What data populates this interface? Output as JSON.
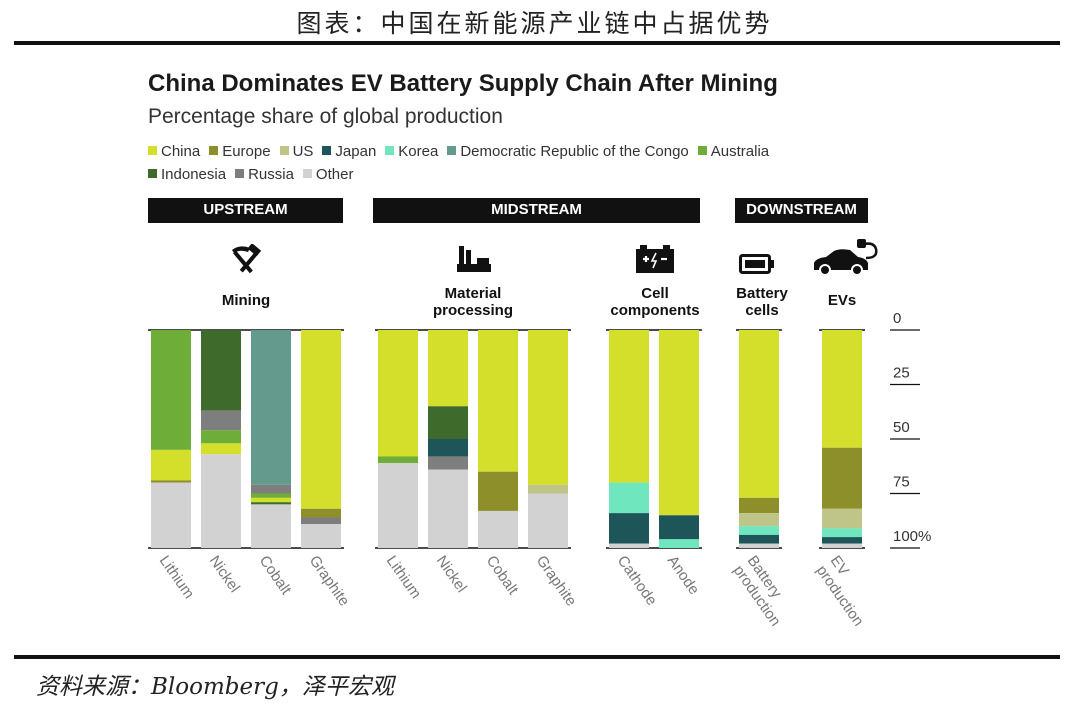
{
  "report_title": "图表：中国在新能源产业链中占据优势",
  "source": "资料来源：Bloomberg，泽平宏观",
  "colors": {
    "China": "#d4df2c",
    "Europe": "#8d8f2a",
    "US": "#bfc488",
    "Japan": "#1d5558",
    "Korea": "#6fe6be",
    "Democratic Republic of the Congo": "#649a8d",
    "Australia": "#6eae38",
    "Indonesia": "#3e6a2b",
    "Russia": "#7e7e7e",
    "Other": "#d2d2d2"
  },
  "chart_data": {
    "type": "bar",
    "stacked": true,
    "orientation": "vertical",
    "title": "China Dominates EV Battery Supply Chain After Mining",
    "subtitle": "Percentage share of global production",
    "ylim": [
      0,
      100
    ],
    "y_inverted": true,
    "y_ticks": [
      "0",
      "25",
      "50",
      "75",
      "100%"
    ],
    "legend": [
      "China",
      "Europe",
      "US",
      "Japan",
      "Korea",
      "Democratic Republic of the Congo",
      "Australia",
      "Indonesia",
      "Russia",
      "Other"
    ],
    "legend_position": "top",
    "stages": [
      {
        "label": "UPSTREAM",
        "groups": [
          {
            "label": "Mining",
            "icon": "pickaxe-hammer-icon",
            "bars": [
              {
                "category": "Lithium",
                "segments": [
                  [
                    "Australia",
                    55
                  ],
                  [
                    "China",
                    14
                  ],
                  [
                    "Europe",
                    1
                  ],
                  [
                    "Other",
                    30
                  ]
                ]
              },
              {
                "category": "Nickel",
                "segments": [
                  [
                    "Indonesia",
                    37
                  ],
                  [
                    "Russia",
                    9
                  ],
                  [
                    "Australia",
                    6
                  ],
                  [
                    "China",
                    5
                  ],
                  [
                    "Other",
                    43
                  ]
                ]
              },
              {
                "category": "Cobalt",
                "segments": [
                  [
                    "Democratic Republic of the Congo",
                    71
                  ],
                  [
                    "Russia",
                    4
                  ],
                  [
                    "Australia",
                    2
                  ],
                  [
                    "China",
                    2
                  ],
                  [
                    "Indonesia",
                    1
                  ],
                  [
                    "Other",
                    20
                  ]
                ]
              },
              {
                "category": "Graphite",
                "segments": [
                  [
                    "China",
                    82
                  ],
                  [
                    "Europe",
                    4
                  ],
                  [
                    "Russia",
                    3
                  ],
                  [
                    "Other",
                    11
                  ]
                ]
              }
            ]
          }
        ]
      },
      {
        "label": "MIDSTREAM",
        "groups": [
          {
            "label": "Material processing",
            "icon": "factory-icon",
            "bars": [
              {
                "category": "Lithium",
                "segments": [
                  [
                    "China",
                    58
                  ],
                  [
                    "Australia",
                    3
                  ],
                  [
                    "Other",
                    39
                  ]
                ]
              },
              {
                "category": "Nickel",
                "segments": [
                  [
                    "China",
                    35
                  ],
                  [
                    "Indonesia",
                    15
                  ],
                  [
                    "Japan",
                    8
                  ],
                  [
                    "Russia",
                    6
                  ],
                  [
                    "Other",
                    36
                  ]
                ]
              },
              {
                "category": "Cobalt",
                "segments": [
                  [
                    "China",
                    65
                  ],
                  [
                    "Europe",
                    18
                  ],
                  [
                    "Other",
                    17
                  ]
                ]
              },
              {
                "category": "Graphite",
                "segments": [
                  [
                    "China",
                    71
                  ],
                  [
                    "US",
                    4
                  ],
                  [
                    "Other",
                    25
                  ]
                ]
              }
            ]
          },
          {
            "label": "Cell components",
            "icon": "battery-pack-icon",
            "bars": [
              {
                "category": "Cathode",
                "segments": [
                  [
                    "China",
                    70
                  ],
                  [
                    "Korea",
                    14
                  ],
                  [
                    "Japan",
                    14
                  ],
                  [
                    "Other",
                    2
                  ]
                ]
              },
              {
                "category": "Anode",
                "segments": [
                  [
                    "China",
                    85
                  ],
                  [
                    "Japan",
                    11
                  ],
                  [
                    "Korea",
                    4
                  ]
                ]
              }
            ]
          }
        ]
      },
      {
        "label": "DOWNSTREAM",
        "groups": [
          {
            "label": "Battery cells",
            "icon": "battery-icon",
            "bars": [
              {
                "category": "Battery production",
                "segments": [
                  [
                    "China",
                    77
                  ],
                  [
                    "Europe",
                    7
                  ],
                  [
                    "US",
                    6
                  ],
                  [
                    "Korea",
                    4
                  ],
                  [
                    "Japan",
                    4
                  ],
                  [
                    "Other",
                    2
                  ]
                ]
              }
            ]
          },
          {
            "label": "EVs",
            "icon": "electric-car-icon",
            "bars": [
              {
                "category": "EV production",
                "segments": [
                  [
                    "China",
                    54
                  ],
                  [
                    "Europe",
                    28
                  ],
                  [
                    "US",
                    9
                  ],
                  [
                    "Korea",
                    4
                  ],
                  [
                    "Japan",
                    3
                  ],
                  [
                    "Other",
                    2
                  ]
                ]
              }
            ]
          }
        ]
      }
    ]
  }
}
